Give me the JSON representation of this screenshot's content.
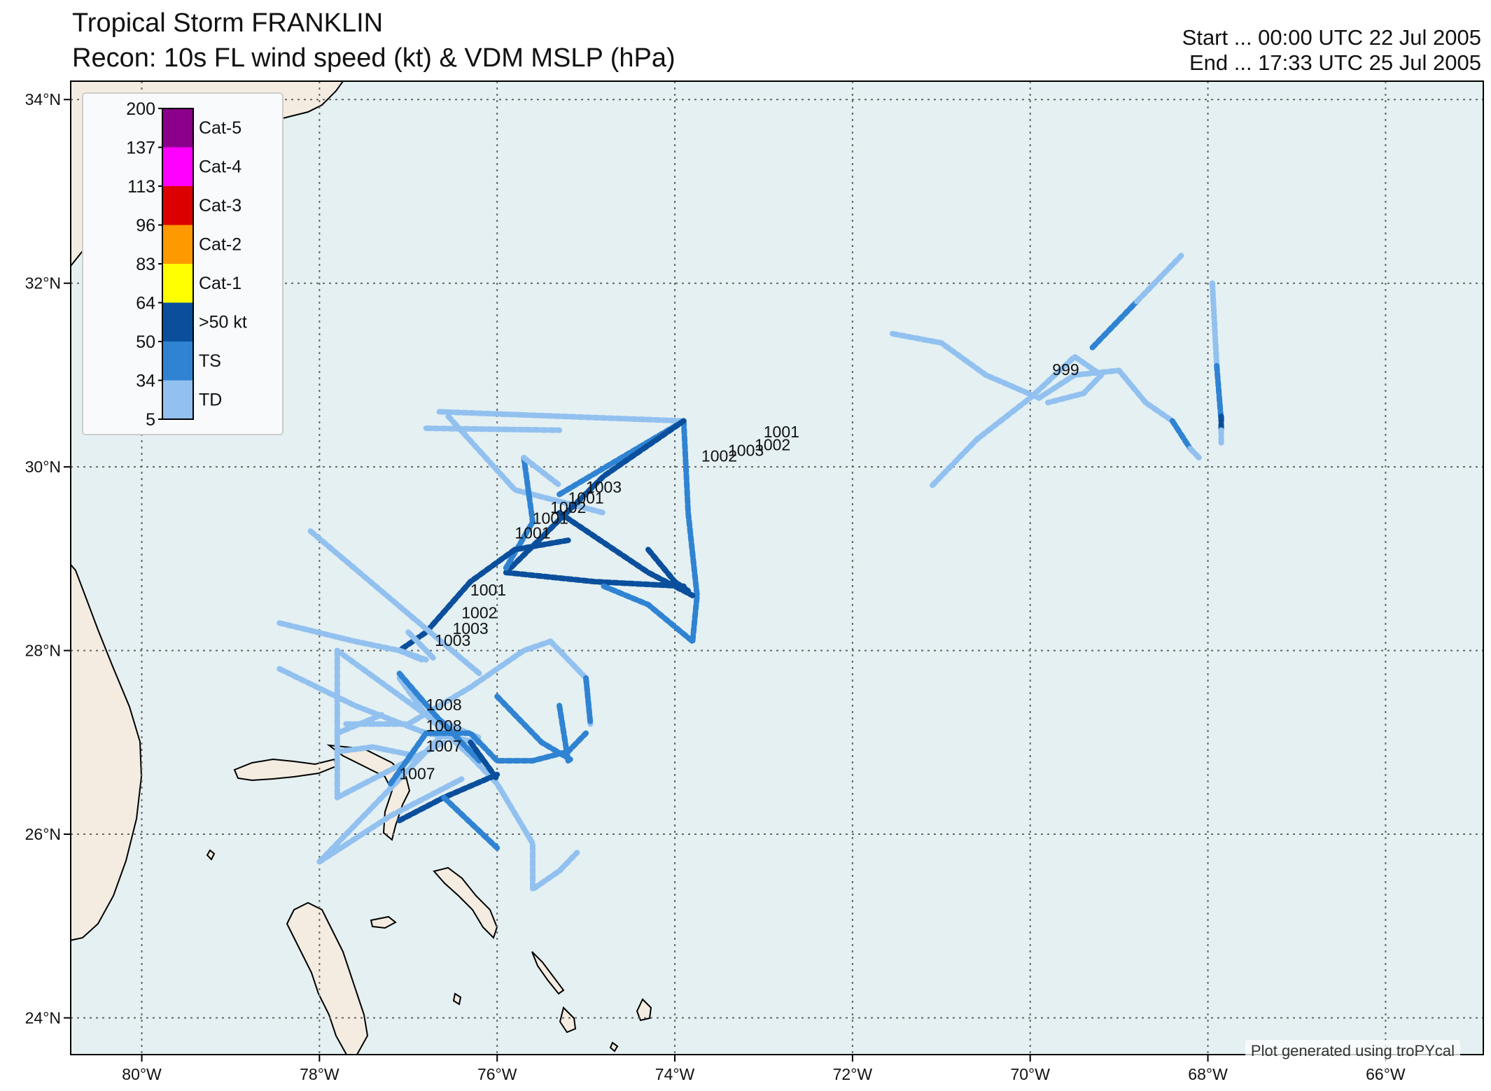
{
  "title": {
    "line1": "Tropical Storm FRANKLIN",
    "line2": "Recon: 10s FL wind speed (kt) & VDM MSLP (hPa)"
  },
  "time_range": {
    "start": "Start ... 00:00 UTC 22 Jul 2005",
    "end": "End ... 17:33 UTC 25 Jul 2005"
  },
  "credit": "Plot generated using troPYcal",
  "colors": {
    "ocean": "#e4f0f2",
    "land": "#f4ece0",
    "coast": "#000000",
    "grid": "#666666",
    "legend_bg": "#f8fafc"
  },
  "map": {
    "lon_range": [
      -80.8,
      -64.9
    ],
    "lat_range": [
      23.6,
      34.2
    ],
    "lon_ticks": [
      {
        "v": -80,
        "label": "80°W"
      },
      {
        "v": -78,
        "label": "78°W"
      },
      {
        "v": -76,
        "label": "76°W"
      },
      {
        "v": -74,
        "label": "74°W"
      },
      {
        "v": -72,
        "label": "72°W"
      },
      {
        "v": -70,
        "label": "70°W"
      },
      {
        "v": -68,
        "label": "68°W"
      },
      {
        "v": -66,
        "label": "66°W"
      }
    ],
    "lat_ticks": [
      {
        "v": 24,
        "label": "24°N"
      },
      {
        "v": 26,
        "label": "26°N"
      },
      {
        "v": 28,
        "label": "28°N"
      },
      {
        "v": 30,
        "label": "30°N"
      },
      {
        "v": 32,
        "label": "32°N"
      },
      {
        "v": 34,
        "label": "34°N"
      }
    ]
  },
  "chart_data": {
    "type": "scatter",
    "colorbar": {
      "ticks": [
        "200",
        "137",
        "113",
        "96",
        "83",
        "64",
        "50",
        "34",
        "5"
      ],
      "bins": [
        {
          "label": "Cat-5",
          "min": 137,
          "max": 200,
          "color": "#8b008b"
        },
        {
          "label": "Cat-4",
          "min": 113,
          "max": 137,
          "color": "#ff00ff"
        },
        {
          "label": "Cat-3",
          "min": 96,
          "max": 113,
          "color": "#dd0000"
        },
        {
          "label": "Cat-2",
          "min": 83,
          "max": 96,
          "color": "#ff9900"
        },
        {
          "label": "Cat-1",
          "min": 64,
          "max": 83,
          "color": "#ffff00"
        },
        {
          "label": ">50 kt",
          "min": 50,
          "max": 64,
          "color": "#0b4f9c"
        },
        {
          "label": "TS",
          "min": 34,
          "max": 50,
          "color": "#2f83d2"
        },
        {
          "label": "TD",
          "min": 5,
          "max": 34,
          "color": "#92c1f0"
        }
      ]
    },
    "tracks": [
      {
        "cat": "TD",
        "points": [
          [
            -76.65,
            30.6
          ],
          [
            -73.9,
            30.5
          ]
        ]
      },
      {
        "cat": "TD",
        "points": [
          [
            -76.8,
            30.42
          ],
          [
            -75.3,
            30.4
          ]
        ]
      },
      {
        "cat": "TD",
        "points": [
          [
            -76.55,
            30.55
          ],
          [
            -75.8,
            29.75
          ],
          [
            -74.8,
            29.5
          ]
        ]
      },
      {
        "cat": "TS",
        "points": [
          [
            -75.3,
            29.7
          ],
          [
            -73.9,
            30.5
          ]
        ]
      },
      {
        "cat": "TS",
        "points": [
          [
            -73.9,
            30.5
          ],
          [
            -73.85,
            29.5
          ],
          [
            -73.75,
            28.6
          ],
          [
            -73.8,
            28.1
          ]
        ]
      },
      {
        "cat": ">50 kt",
        "points": [
          [
            -75.9,
            28.85
          ],
          [
            -74.9,
            28.75
          ],
          [
            -73.9,
            28.7
          ]
        ]
      },
      {
        "cat": ">50 kt",
        "points": [
          [
            -75.9,
            28.85
          ],
          [
            -74.8,
            29.9
          ],
          [
            -73.9,
            30.5
          ]
        ]
      },
      {
        "cat": ">50 kt",
        "points": [
          [
            -75.3,
            29.5
          ],
          [
            -74.3,
            28.85
          ],
          [
            -73.8,
            28.6
          ]
        ]
      },
      {
        "cat": ">50 kt",
        "points": [
          [
            -74.3,
            29.1
          ],
          [
            -74.0,
            28.75
          ],
          [
            -73.85,
            28.65
          ]
        ]
      },
      {
        "cat": "TS",
        "points": [
          [
            -74.8,
            28.7
          ],
          [
            -74.3,
            28.5
          ],
          [
            -73.8,
            28.1
          ]
        ]
      },
      {
        "cat": "TS",
        "points": [
          [
            -75.7,
            30.1
          ],
          [
            -75.6,
            29.4
          ],
          [
            -75.9,
            28.9
          ]
        ]
      },
      {
        "cat": "TD",
        "points": [
          [
            -75.7,
            30.1
          ],
          [
            -75.3,
            29.8
          ]
        ]
      },
      {
        "cat": ">50 kt",
        "points": [
          [
            -75.2,
            29.2
          ],
          [
            -75.8,
            29.1
          ],
          [
            -76.3,
            28.75
          ],
          [
            -76.8,
            28.2
          ],
          [
            -77.1,
            28.0
          ]
        ]
      },
      {
        "cat": "TD",
        "points": [
          [
            -77.1,
            28.0
          ],
          [
            -76.85,
            27.9
          ]
        ]
      },
      {
        "cat": "TD",
        "points": [
          [
            -78.1,
            29.3
          ],
          [
            -77.0,
            28.4
          ],
          [
            -76.2,
            27.75
          ]
        ]
      },
      {
        "cat": "TD",
        "points": [
          [
            -78.45,
            28.3
          ],
          [
            -77.6,
            28.1
          ],
          [
            -77.1,
            28.0
          ],
          [
            -76.8,
            27.9
          ]
        ]
      },
      {
        "cat": "TD",
        "points": [
          [
            -78.45,
            27.8
          ],
          [
            -77.6,
            27.4
          ],
          [
            -76.8,
            27.1
          ],
          [
            -76.2,
            27.0
          ]
        ]
      },
      {
        "cat": "TD",
        "points": [
          [
            -77.8,
            28.0
          ],
          [
            -77.8,
            27.5
          ],
          [
            -77.8,
            26.4
          ]
        ]
      },
      {
        "cat": "TD",
        "points": [
          [
            -77.8,
            28.0
          ],
          [
            -76.8,
            27.3
          ],
          [
            -76.2,
            27.05
          ]
        ]
      },
      {
        "cat": "TD",
        "points": [
          [
            -77.7,
            27.2
          ],
          [
            -77.0,
            27.2
          ],
          [
            -76.3,
            27.6
          ],
          [
            -75.7,
            28.0
          ],
          [
            -75.4,
            28.1
          ]
        ]
      },
      {
        "cat": "TD",
        "points": [
          [
            -75.4,
            28.1
          ],
          [
            -75.0,
            27.7
          ],
          [
            -74.95,
            27.2
          ]
        ]
      },
      {
        "cat": "TS",
        "points": [
          [
            -75.0,
            27.7
          ],
          [
            -74.95,
            27.2
          ]
        ]
      },
      {
        "cat": "TD",
        "points": [
          [
            -78.0,
            25.7
          ],
          [
            -77.0,
            26.7
          ],
          [
            -76.6,
            27.1
          ]
        ]
      },
      {
        "cat": "TD",
        "points": [
          [
            -78.0,
            25.7
          ],
          [
            -77.2,
            26.2
          ],
          [
            -76.4,
            26.6
          ]
        ]
      },
      {
        "cat": "TD",
        "points": [
          [
            -77.8,
            26.4
          ],
          [
            -77.4,
            26.6
          ],
          [
            -77.0,
            26.8
          ],
          [
            -76.6,
            27.0
          ]
        ]
      },
      {
        "cat": "TD",
        "points": [
          [
            -77.0,
            28.2
          ],
          [
            -76.7,
            27.9
          ]
        ]
      },
      {
        "cat": "TD",
        "points": [
          [
            -77.8,
            27.1
          ],
          [
            -77.3,
            27.3
          ]
        ]
      },
      {
        "cat": "TD",
        "points": [
          [
            -77.8,
            26.9
          ],
          [
            -77.4,
            26.95
          ],
          [
            -76.9,
            26.85
          ]
        ]
      },
      {
        "cat": "TD",
        "points": [
          [
            -77.1,
            27.7
          ],
          [
            -76.8,
            27.3
          ],
          [
            -76.3,
            26.85
          ],
          [
            -76.0,
            26.55
          ],
          [
            -75.6,
            25.9
          ],
          [
            -75.6,
            25.4
          ],
          [
            -75.3,
            25.6
          ],
          [
            -75.1,
            25.8
          ]
        ]
      },
      {
        "cat": "TS",
        "points": [
          [
            -77.2,
            26.55
          ],
          [
            -76.8,
            27.1
          ],
          [
            -76.3,
            27.1
          ],
          [
            -76.0,
            26.8
          ],
          [
            -75.6,
            26.8
          ],
          [
            -75.2,
            26.9
          ],
          [
            -75.0,
            27.1
          ]
        ]
      },
      {
        "cat": "TS",
        "points": [
          [
            -75.3,
            27.4
          ],
          [
            -75.2,
            26.8
          ]
        ]
      },
      {
        "cat": "TS",
        "points": [
          [
            -77.1,
            27.75
          ],
          [
            -76.7,
            27.3
          ],
          [
            -76.2,
            26.8
          ]
        ]
      },
      {
        "cat": ">50 kt",
        "points": [
          [
            -77.1,
            26.15
          ],
          [
            -76.6,
            26.4
          ],
          [
            -76.0,
            26.65
          ]
        ]
      },
      {
        "cat": ">50 kt",
        "points": [
          [
            -76.3,
            27.0
          ],
          [
            -76.0,
            26.6
          ]
        ]
      },
      {
        "cat": "TS",
        "points": [
          [
            -76.6,
            26.4
          ],
          [
            -76.0,
            25.85
          ]
        ]
      },
      {
        "cat": "TS",
        "points": [
          [
            -76.0,
            27.5
          ],
          [
            -75.5,
            27.0
          ],
          [
            -75.15,
            26.8
          ]
        ]
      },
      {
        "cat": "TD",
        "points": [
          [
            -71.55,
            31.45
          ],
          [
            -71.0,
            31.35
          ],
          [
            -70.5,
            31.0
          ],
          [
            -69.9,
            30.75
          ]
        ]
      },
      {
        "cat": "TD",
        "points": [
          [
            -71.1,
            29.8
          ],
          [
            -70.6,
            30.3
          ],
          [
            -70.0,
            30.75
          ],
          [
            -69.5,
            31.2
          ],
          [
            -69.2,
            31.0
          ],
          [
            -69.4,
            30.8
          ],
          [
            -69.8,
            30.7
          ]
        ]
      },
      {
        "cat": "TD",
        "points": [
          [
            -69.9,
            30.75
          ],
          [
            -69.5,
            31.0
          ],
          [
            -69.0,
            31.05
          ],
          [
            -68.7,
            30.7
          ],
          [
            -68.4,
            30.5
          ]
        ]
      },
      {
        "cat": "TS",
        "points": [
          [
            -69.3,
            31.3
          ],
          [
            -68.8,
            31.8
          ]
        ]
      },
      {
        "cat": "TD",
        "points": [
          [
            -68.8,
            31.8
          ],
          [
            -68.3,
            32.3
          ]
        ]
      },
      {
        "cat": "TS",
        "points": [
          [
            -68.4,
            30.5
          ],
          [
            -68.2,
            30.2
          ]
        ]
      },
      {
        "cat": "TD",
        "points": [
          [
            -68.2,
            30.2
          ],
          [
            -68.1,
            30.1
          ]
        ]
      },
      {
        "cat": "TD",
        "points": [
          [
            -67.95,
            32.0
          ],
          [
            -67.9,
            31.1
          ]
        ]
      },
      {
        "cat": "TS",
        "points": [
          [
            -67.9,
            31.1
          ],
          [
            -67.85,
            30.5
          ]
        ]
      },
      {
        "cat": ">50 kt",
        "points": [
          [
            -67.85,
            30.55
          ],
          [
            -67.85,
            30.4
          ]
        ]
      },
      {
        "cat": "TD",
        "points": [
          [
            -67.85,
            30.4
          ],
          [
            -67.85,
            30.25
          ]
        ]
      }
    ],
    "mslp_labels": [
      {
        "lon": -74.8,
        "lat": 29.72,
        "text": "1003"
      },
      {
        "lon": -75.0,
        "lat": 29.6,
        "text": "1001"
      },
      {
        "lon": -75.2,
        "lat": 29.5,
        "text": "1002"
      },
      {
        "lon": -75.4,
        "lat": 29.38,
        "text": "1001"
      },
      {
        "lon": -75.6,
        "lat": 29.22,
        "text": "1001"
      },
      {
        "lon": -76.1,
        "lat": 28.6,
        "text": "1001"
      },
      {
        "lon": -76.2,
        "lat": 28.35,
        "text": "1002"
      },
      {
        "lon": -76.3,
        "lat": 28.18,
        "text": "1003"
      },
      {
        "lon": -76.5,
        "lat": 28.05,
        "text": "1003"
      },
      {
        "lon": -72.8,
        "lat": 30.32,
        "text": "1001"
      },
      {
        "lon": -72.9,
        "lat": 30.18,
        "text": "1002"
      },
      {
        "lon": -73.2,
        "lat": 30.12,
        "text": "1003"
      },
      {
        "lon": -73.5,
        "lat": 30.06,
        "text": "1002"
      },
      {
        "lon": -76.6,
        "lat": 27.35,
        "text": "1008"
      },
      {
        "lon": -76.6,
        "lat": 27.12,
        "text": "1008"
      },
      {
        "lon": -76.6,
        "lat": 26.9,
        "text": "1007"
      },
      {
        "lon": -76.9,
        "lat": 26.6,
        "text": "1007"
      },
      {
        "lon": -69.6,
        "lat": 31.0,
        "text": "999"
      }
    ]
  }
}
